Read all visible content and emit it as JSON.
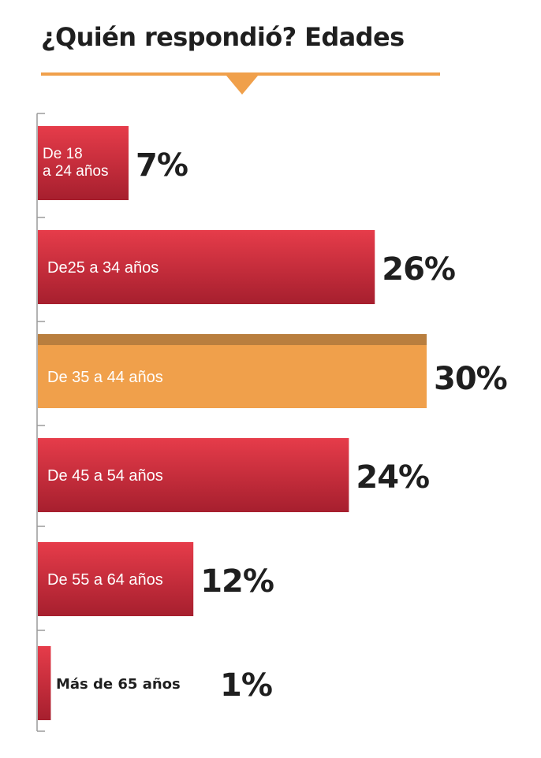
{
  "title": "¿Quién respondió? Edades",
  "colors": {
    "bar": "#c8283a",
    "bar_light": "#e63c4a",
    "bar_dark": "#a61f2e",
    "highlight": "#f0a04b",
    "highlight_top": "#b97e3e",
    "axis": "#9a9a9a",
    "value_text": "#1f1f1f",
    "accent": "#f0a04b"
  },
  "chart_data": {
    "type": "bar",
    "orientation": "horizontal",
    "title": "¿Quién respondió? Edades",
    "categories": [
      [
        "De 18",
        "a 24 años"
      ],
      [
        "De25 a 34 años"
      ],
      [
        "De 35 a 44 años"
      ],
      [
        "De 45 a 54 años"
      ],
      [
        "De 55 a 64 años"
      ],
      [
        "Más de 65 años"
      ]
    ],
    "values": [
      7,
      26,
      30,
      24,
      12,
      1
    ],
    "value_labels": [
      "7%",
      "26%",
      "30%",
      "24%",
      "12%",
      "1%"
    ],
    "highlight_index": 2,
    "unit": "%",
    "xlim": [
      0,
      30
    ],
    "grid": false,
    "legend": "none"
  }
}
